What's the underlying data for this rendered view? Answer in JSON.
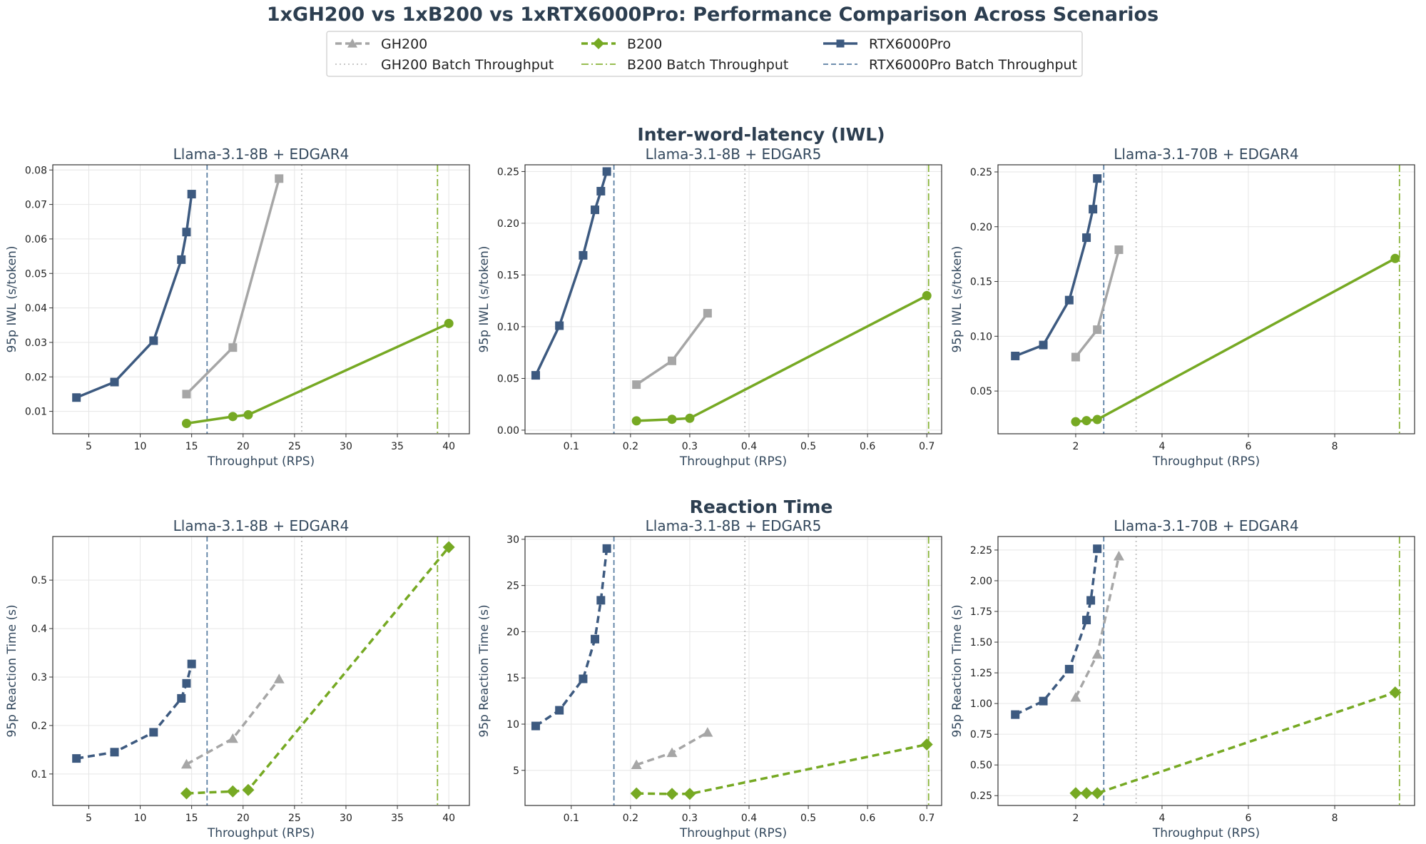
{
  "figure_title": "1xGH200 vs 1xB200 vs 1xRTX6000Pro: Performance Comparison Across Scenarios",
  "section_titles": [
    "Inter-word-latency (IWL)",
    "Reaction Time"
  ],
  "legend": [
    {
      "label": "GH200",
      "kind": "series",
      "color": "#a6a6a6",
      "marker": "triangle"
    },
    {
      "label": "B200",
      "kind": "series",
      "color": "#76a923",
      "marker": "diamond"
    },
    {
      "label": "RTX6000Pro",
      "kind": "series",
      "color": "#3d5a80",
      "marker": "square"
    },
    {
      "label": "GH200 Batch Throughput",
      "kind": "dotted",
      "color": "#c0c0c0"
    },
    {
      "label": "B200 Batch Throughput",
      "kind": "dashdot",
      "color": "#8ab43a"
    },
    {
      "label": "RTX6000Pro Batch Throughput",
      "kind": "dashed",
      "color": "#5b7fa3"
    }
  ],
  "chart_data": [
    {
      "type": "line",
      "title": "Llama-3.1-8B + EDGAR4",
      "xlabel": "Throughput (RPS)",
      "ylabel": "95p IWL (s/token)",
      "xlim": [
        1.5,
        42
      ],
      "ylim": [
        0.0035,
        0.0815
      ],
      "xticks": [
        5,
        10,
        15,
        20,
        25,
        30,
        35,
        40
      ],
      "xtick_labels": [
        "5",
        "10",
        "15",
        "20",
        "25",
        "30",
        "35",
        "40"
      ],
      "yticks": [
        0.01,
        0.02,
        0.03,
        0.04,
        0.05,
        0.06,
        0.07,
        0.08
      ],
      "ytick_labels": [
        "0.01",
        "0.02",
        "0.03",
        "0.04",
        "0.05",
        "0.06",
        "0.07",
        "0.08"
      ],
      "grid": true,
      "batch_throughput": {
        "GH200": 25.7,
        "B200": 38.9,
        "RTX6000Pro": 16.5
      },
      "series": [
        {
          "name": "GH200",
          "marker": "square",
          "x": [
            14.5,
            19.0,
            23.5
          ],
          "y": [
            0.015,
            0.0285,
            0.0775
          ]
        },
        {
          "name": "B200",
          "marker": "circle",
          "x": [
            14.5,
            19.0,
            20.5,
            40.0
          ],
          "y": [
            0.0065,
            0.0085,
            0.009,
            0.0355
          ]
        },
        {
          "name": "RTX6000Pro",
          "marker": "square",
          "x": [
            3.8,
            7.5,
            11.3,
            14.0,
            14.5,
            15.0
          ],
          "y": [
            0.014,
            0.0185,
            0.0305,
            0.054,
            0.062,
            0.073
          ]
        }
      ]
    },
    {
      "type": "line",
      "title": "Llama-3.1-8B + EDGAR5",
      "xlabel": "Throughput (RPS)",
      "ylabel": "95p IWL (s/token)",
      "xlim": [
        0.022,
        0.725
      ],
      "ylim": [
        -0.0035,
        0.2565
      ],
      "xticks": [
        0.1,
        0.2,
        0.3,
        0.4,
        0.5,
        0.6,
        0.7
      ],
      "xtick_labels": [
        "0.1",
        "0.2",
        "0.3",
        "0.4",
        "0.5",
        "0.6",
        "0.7"
      ],
      "yticks": [
        0.0,
        0.05,
        0.1,
        0.15,
        0.2,
        0.25
      ],
      "ytick_labels": [
        "0.00",
        "0.05",
        "0.10",
        "0.15",
        "0.20",
        "0.25"
      ],
      "grid": true,
      "batch_throughput": {
        "GH200": 0.393,
        "B200": 0.703,
        "RTX6000Pro": 0.172
      },
      "series": [
        {
          "name": "GH200",
          "marker": "square",
          "x": [
            0.21,
            0.27,
            0.33
          ],
          "y": [
            0.044,
            0.067,
            0.113
          ]
        },
        {
          "name": "B200",
          "marker": "circle",
          "x": [
            0.21,
            0.27,
            0.3,
            0.7
          ],
          "y": [
            0.009,
            0.0105,
            0.0115,
            0.13
          ]
        },
        {
          "name": "RTX6000Pro",
          "marker": "square",
          "x": [
            0.04,
            0.08,
            0.12,
            0.14,
            0.15,
            0.16
          ],
          "y": [
            0.053,
            0.101,
            0.169,
            0.213,
            0.231,
            0.25
          ]
        }
      ]
    },
    {
      "type": "line",
      "title": "Llama-3.1-70B + EDGAR4",
      "xlabel": "Throughput (RPS)",
      "ylabel": "95p IWL (s/token)",
      "xlim": [
        0.2,
        9.85
      ],
      "ylim": [
        0.011,
        0.2565
      ],
      "xticks": [
        2,
        4,
        6,
        8
      ],
      "xtick_labels": [
        "2",
        "4",
        "6",
        "8"
      ],
      "yticks": [
        0.05,
        0.1,
        0.15,
        0.2,
        0.25
      ],
      "ytick_labels": [
        "0.05",
        "0.10",
        "0.15",
        "0.20",
        "0.25"
      ],
      "grid": true,
      "batch_throughput": {
        "GH200": 3.4,
        "B200": 9.5,
        "RTX6000Pro": 2.65
      },
      "series": [
        {
          "name": "GH200",
          "marker": "square",
          "x": [
            2.0,
            2.5,
            3.0
          ],
          "y": [
            0.081,
            0.106,
            0.179
          ]
        },
        {
          "name": "B200",
          "marker": "circle",
          "x": [
            2.0,
            2.25,
            2.5,
            9.4
          ],
          "y": [
            0.022,
            0.023,
            0.024,
            0.171
          ]
        },
        {
          "name": "RTX6000Pro",
          "marker": "square",
          "x": [
            0.6,
            1.25,
            1.85,
            2.25,
            2.4,
            2.5
          ],
          "y": [
            0.082,
            0.092,
            0.133,
            0.19,
            0.216,
            0.244
          ]
        }
      ]
    },
    {
      "type": "line",
      "title": "Llama-3.1-8B + EDGAR4",
      "xlabel": "Throughput (RPS)",
      "ylabel": "95p Reaction Time (s)",
      "xlim": [
        1.5,
        42
      ],
      "ylim": [
        0.035,
        0.59
      ],
      "xticks": [
        5,
        10,
        15,
        20,
        25,
        30,
        35,
        40
      ],
      "xtick_labels": [
        "5",
        "10",
        "15",
        "20",
        "25",
        "30",
        "35",
        "40"
      ],
      "yticks": [
        0.1,
        0.2,
        0.3,
        0.4,
        0.5
      ],
      "ytick_labels": [
        "0.1",
        "0.2",
        "0.3",
        "0.4",
        "0.5"
      ],
      "grid": true,
      "batch_throughput": {
        "GH200": 25.7,
        "B200": 38.9,
        "RTX6000Pro": 16.5
      },
      "series": [
        {
          "name": "GH200",
          "marker": "triangle",
          "x": [
            14.5,
            19.0,
            23.5
          ],
          "y": [
            0.12,
            0.173,
            0.296
          ]
        },
        {
          "name": "B200",
          "marker": "diamond",
          "x": [
            14.5,
            19.0,
            20.5,
            40.0
          ],
          "y": [
            0.06,
            0.064,
            0.067,
            0.568
          ]
        },
        {
          "name": "RTX6000Pro",
          "marker": "square",
          "x": [
            3.8,
            7.5,
            11.3,
            14.0,
            14.5,
            15.0
          ],
          "y": [
            0.132,
            0.145,
            0.186,
            0.256,
            0.287,
            0.327
          ]
        }
      ]
    },
    {
      "type": "line",
      "title": "Llama-3.1-8B + EDGAR5",
      "xlabel": "Throughput (RPS)",
      "ylabel": "95p Reaction Time (s)",
      "xlim": [
        0.022,
        0.725
      ],
      "ylim": [
        1.2,
        30.3
      ],
      "xticks": [
        0.1,
        0.2,
        0.3,
        0.4,
        0.5,
        0.6,
        0.7
      ],
      "xtick_labels": [
        "0.1",
        "0.2",
        "0.3",
        "0.4",
        "0.5",
        "0.6",
        "0.7"
      ],
      "yticks": [
        5,
        10,
        15,
        20,
        25,
        30
      ],
      "ytick_labels": [
        "5",
        "10",
        "15",
        "20",
        "25",
        "30"
      ],
      "grid": true,
      "batch_throughput": {
        "GH200": 0.393,
        "B200": 0.703,
        "RTX6000Pro": 0.172
      },
      "series": [
        {
          "name": "GH200",
          "marker": "triangle",
          "x": [
            0.21,
            0.27,
            0.33
          ],
          "y": [
            5.6,
            6.9,
            9.1
          ]
        },
        {
          "name": "B200",
          "marker": "diamond",
          "x": [
            0.21,
            0.27,
            0.3,
            0.7
          ],
          "y": [
            2.5,
            2.45,
            2.45,
            7.8
          ]
        },
        {
          "name": "RTX6000Pro",
          "marker": "square",
          "x": [
            0.04,
            0.08,
            0.12,
            0.14,
            0.15,
            0.16
          ],
          "y": [
            9.8,
            11.5,
            14.9,
            19.2,
            23.4,
            29.0
          ]
        }
      ]
    },
    {
      "type": "line",
      "title": "Llama-3.1-70B + EDGAR4",
      "xlabel": "Throughput (RPS)",
      "ylabel": "95p Reaction Time (s)",
      "xlim": [
        0.2,
        9.85
      ],
      "ylim": [
        0.17,
        2.36
      ],
      "xticks": [
        2,
        4,
        6,
        8
      ],
      "xtick_labels": [
        "2",
        "4",
        "6",
        "8"
      ],
      "yticks": [
        0.25,
        0.5,
        0.75,
        1.0,
        1.25,
        1.5,
        1.75,
        2.0,
        2.25
      ],
      "ytick_labels": [
        "0.25",
        "0.50",
        "0.75",
        "1.00",
        "1.25",
        "1.50",
        "1.75",
        "2.00",
        "2.25"
      ],
      "grid": true,
      "batch_throughput": {
        "GH200": 3.4,
        "B200": 9.5,
        "RTX6000Pro": 2.65
      },
      "series": [
        {
          "name": "GH200",
          "marker": "triangle",
          "x": [
            2.0,
            2.5,
            3.0
          ],
          "y": [
            1.05,
            1.4,
            2.2
          ]
        },
        {
          "name": "B200",
          "marker": "diamond",
          "x": [
            2.0,
            2.25,
            2.5,
            9.4
          ],
          "y": [
            0.27,
            0.27,
            0.27,
            1.09
          ]
        },
        {
          "name": "RTX6000Pro",
          "marker": "square",
          "x": [
            0.6,
            1.25,
            1.85,
            2.25,
            2.35,
            2.5
          ],
          "y": [
            0.91,
            1.02,
            1.28,
            1.68,
            1.84,
            2.26
          ]
        }
      ]
    }
  ]
}
